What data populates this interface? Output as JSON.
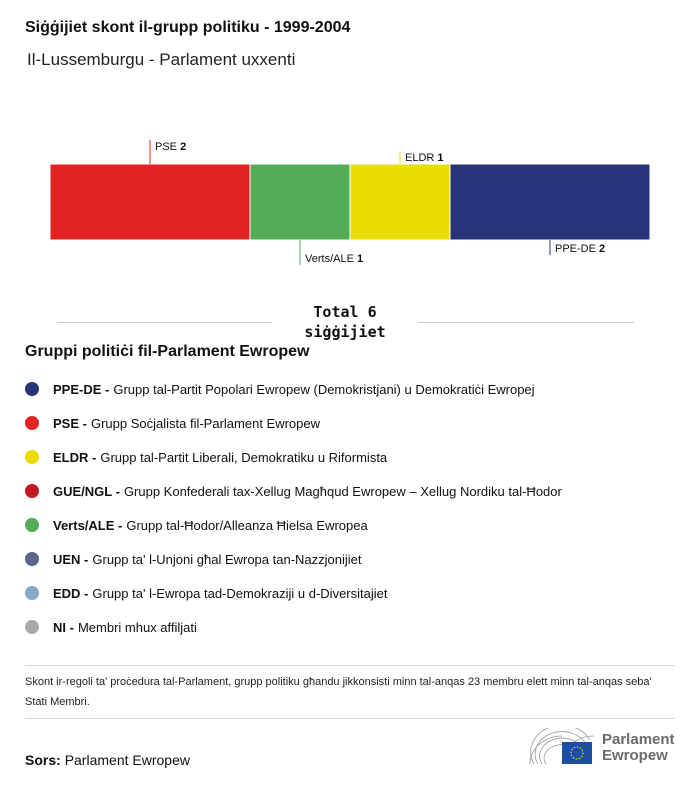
{
  "title": "Siġġijiet skont il-grupp politiku - 1999-2004",
  "subtitle": "Il-Lussemburgu - Parlament uxxenti",
  "chart_data": {
    "type": "bar",
    "orientation": "stacked-horizontal",
    "categories": [
      "PSE",
      "Verts/ALE",
      "ELDR",
      "PPE-DE"
    ],
    "values": [
      2,
      1,
      1,
      2
    ],
    "colors": [
      "#e32321",
      "#52ad56",
      "#ebdd00",
      "#273479"
    ],
    "total": 6
  },
  "total_label": "Total 6",
  "total_unit": "siġġijiet",
  "legend_title": "Gruppi politiċi fil-Parlament Ewropew",
  "legend": [
    {
      "abbr": "PPE-DE -",
      "name": "Grupp tal-Partit Popolari Ewropew (Demokristjani) u Demokratiċi Ewropej",
      "color": "#273479"
    },
    {
      "abbr": "PSE -",
      "name": "Grupp Soċjalista fil-Parlament Ewropew",
      "color": "#e32321"
    },
    {
      "abbr": "ELDR -",
      "name": "Grupp tal-Partit Liberali, Demokratiku u Riformista",
      "color": "#ebdd00"
    },
    {
      "abbr": "GUE/NGL -",
      "name": "Grupp Konfederali tax-Xellug Magħqud Ewropew – Xellug Nordiku tal-Ħodor",
      "color": "#c1191f"
    },
    {
      "abbr": "Verts/ALE -",
      "name": "Grupp tal-Ħodor/Alleanza Ħielsa Ewropea",
      "color": "#52ad56"
    },
    {
      "abbr": "UEN -",
      "name": "Grupp ta' l-Unjoni għal Ewropa tan-Nazzjonijiet",
      "color": "#57688f"
    },
    {
      "abbr": "EDD -",
      "name": "Grupp ta' l-Ewropa tad-Demokraziji u d-Diversitajiet",
      "color": "#83aac6"
    },
    {
      "abbr": "NI -",
      "name": "Membri mhux affiljati",
      "color": "#aaaaaa"
    }
  ],
  "note": "Skont ir-regoli ta' proċedura tal-Parlament, grupp politiku għandu jikkonsisti minn tal-anqas 23 membru elett minn tal-anqas seba' Stati Membri.",
  "source_label": "Sors:",
  "source": "Parlament Ewropew",
  "logo_text": "Parlament Ewropew"
}
